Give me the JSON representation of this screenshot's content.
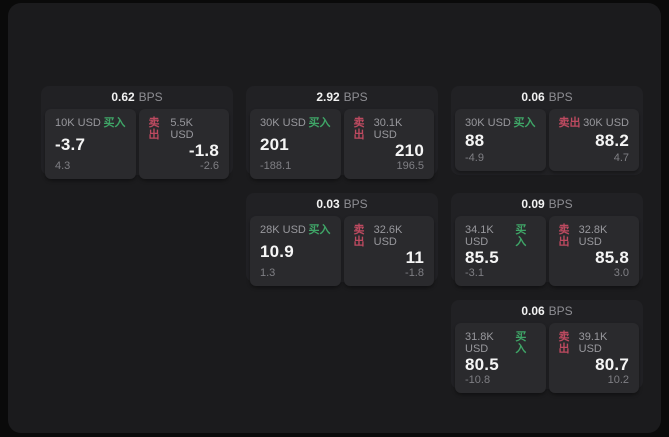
{
  "labels": {
    "bps_suffix": "BPS",
    "buy": "买入",
    "sell": "卖出"
  },
  "colors": {
    "buy_green": "#3fa567",
    "sell_red": "#bd4a60",
    "panel_bg": "#1b1b1d",
    "card_bg": "#212124",
    "tile_bg": "#2a2a2d",
    "text_primary": "#f5f5f5",
    "text_muted": "#98989d"
  },
  "cards": [
    {
      "bps": "0.62",
      "row": 1,
      "col": 1,
      "buy": {
        "notional": "10K USD",
        "price": "-3.7",
        "delta": "4.3"
      },
      "sell": {
        "notional": "5.5K USD",
        "price": "-1.8",
        "delta": "-2.6"
      }
    },
    {
      "bps": "2.92",
      "row": 1,
      "col": 2,
      "buy": {
        "notional": "30K USD",
        "price": "201",
        "delta": "-188.1"
      },
      "sell": {
        "notional": "30.1K USD",
        "price": "210",
        "delta": "196.5"
      }
    },
    {
      "bps": "0.06",
      "row": 1,
      "col": 3,
      "buy": {
        "notional": "30K USD",
        "price": "88",
        "delta": "-4.9"
      },
      "sell": {
        "notional": "30K USD",
        "price": "88.2",
        "delta": "4.7"
      }
    },
    {
      "bps": "0.03",
      "row": 2,
      "col": 2,
      "buy": {
        "notional": "28K USD",
        "price": "10.9",
        "delta": "1.3"
      },
      "sell": {
        "notional": "32.6K USD",
        "price": "11",
        "delta": "-1.8"
      }
    },
    {
      "bps": "0.09",
      "row": 2,
      "col": 3,
      "buy": {
        "notional": "34.1K USD",
        "price": "85.5",
        "delta": "-3.1"
      },
      "sell": {
        "notional": "32.8K USD",
        "price": "85.8",
        "delta": "3.0"
      }
    },
    {
      "bps": "0.06",
      "row": 3,
      "col": 3,
      "buy": {
        "notional": "31.8K USD",
        "price": "80.5",
        "delta": "-10.8"
      },
      "sell": {
        "notional": "39.1K USD",
        "price": "80.7",
        "delta": "10.2"
      }
    }
  ]
}
